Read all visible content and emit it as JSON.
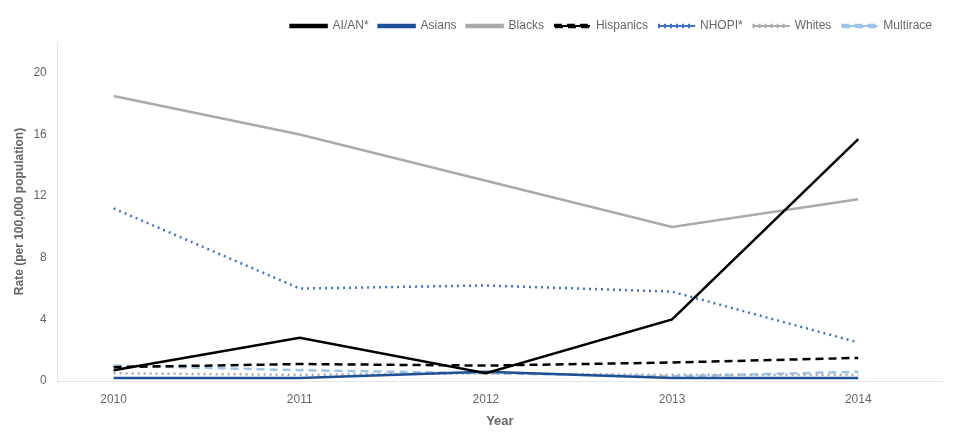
{
  "chart_data": {
    "type": "line",
    "x": [
      2010,
      2011,
      2012,
      2013,
      2014
    ],
    "series": [
      {
        "name": "AI/AN*",
        "color": "#000000",
        "line_style": "solid",
        "values": [
          0.7,
          2.8,
          0.5,
          4.0,
          15.7
        ]
      },
      {
        "name": "Asians",
        "color": "#1f5096",
        "line_style": "solid",
        "values": [
          0.2,
          0.2,
          0.6,
          0.2,
          0.2
        ]
      },
      {
        "name": "Blacks",
        "color": "#aaaaaa",
        "line_style": "solid",
        "values": [
          18.5,
          16.0,
          13.0,
          10.0,
          11.8
        ]
      },
      {
        "name": "Hispanics",
        "color": "#000000",
        "line_style": "dashed",
        "values": [
          0.9,
          1.1,
          1.0,
          1.2,
          1.5
        ]
      },
      {
        "name": "NHOPI*",
        "color": "#4472c4",
        "line_style": "dotted",
        "values": [
          11.2,
          6.0,
          6.2,
          5.8,
          2.5
        ]
      },
      {
        "name": "Whites",
        "color": "#aaaaaa",
        "line_style": "dotted",
        "values": [
          0.5,
          0.4,
          0.5,
          0.4,
          0.4
        ]
      },
      {
        "name": "Multirace",
        "color": "#9dc3e6",
        "line_style": "dashed",
        "values": [
          1.0,
          0.7,
          0.5,
          0.3,
          0.6
        ]
      }
    ],
    "xlabel": "Year",
    "ylabel": "Rate (per 100,000 population)",
    "xlim": [
      2009.7,
      2014.45
    ],
    "xticks": [
      2010,
      2011,
      2012,
      2013,
      2014
    ],
    "ylim": [
      0,
      22
    ],
    "yticks": [
      0,
      4,
      8,
      12,
      16,
      20
    ],
    "grid": false,
    "legend": "upper right"
  }
}
